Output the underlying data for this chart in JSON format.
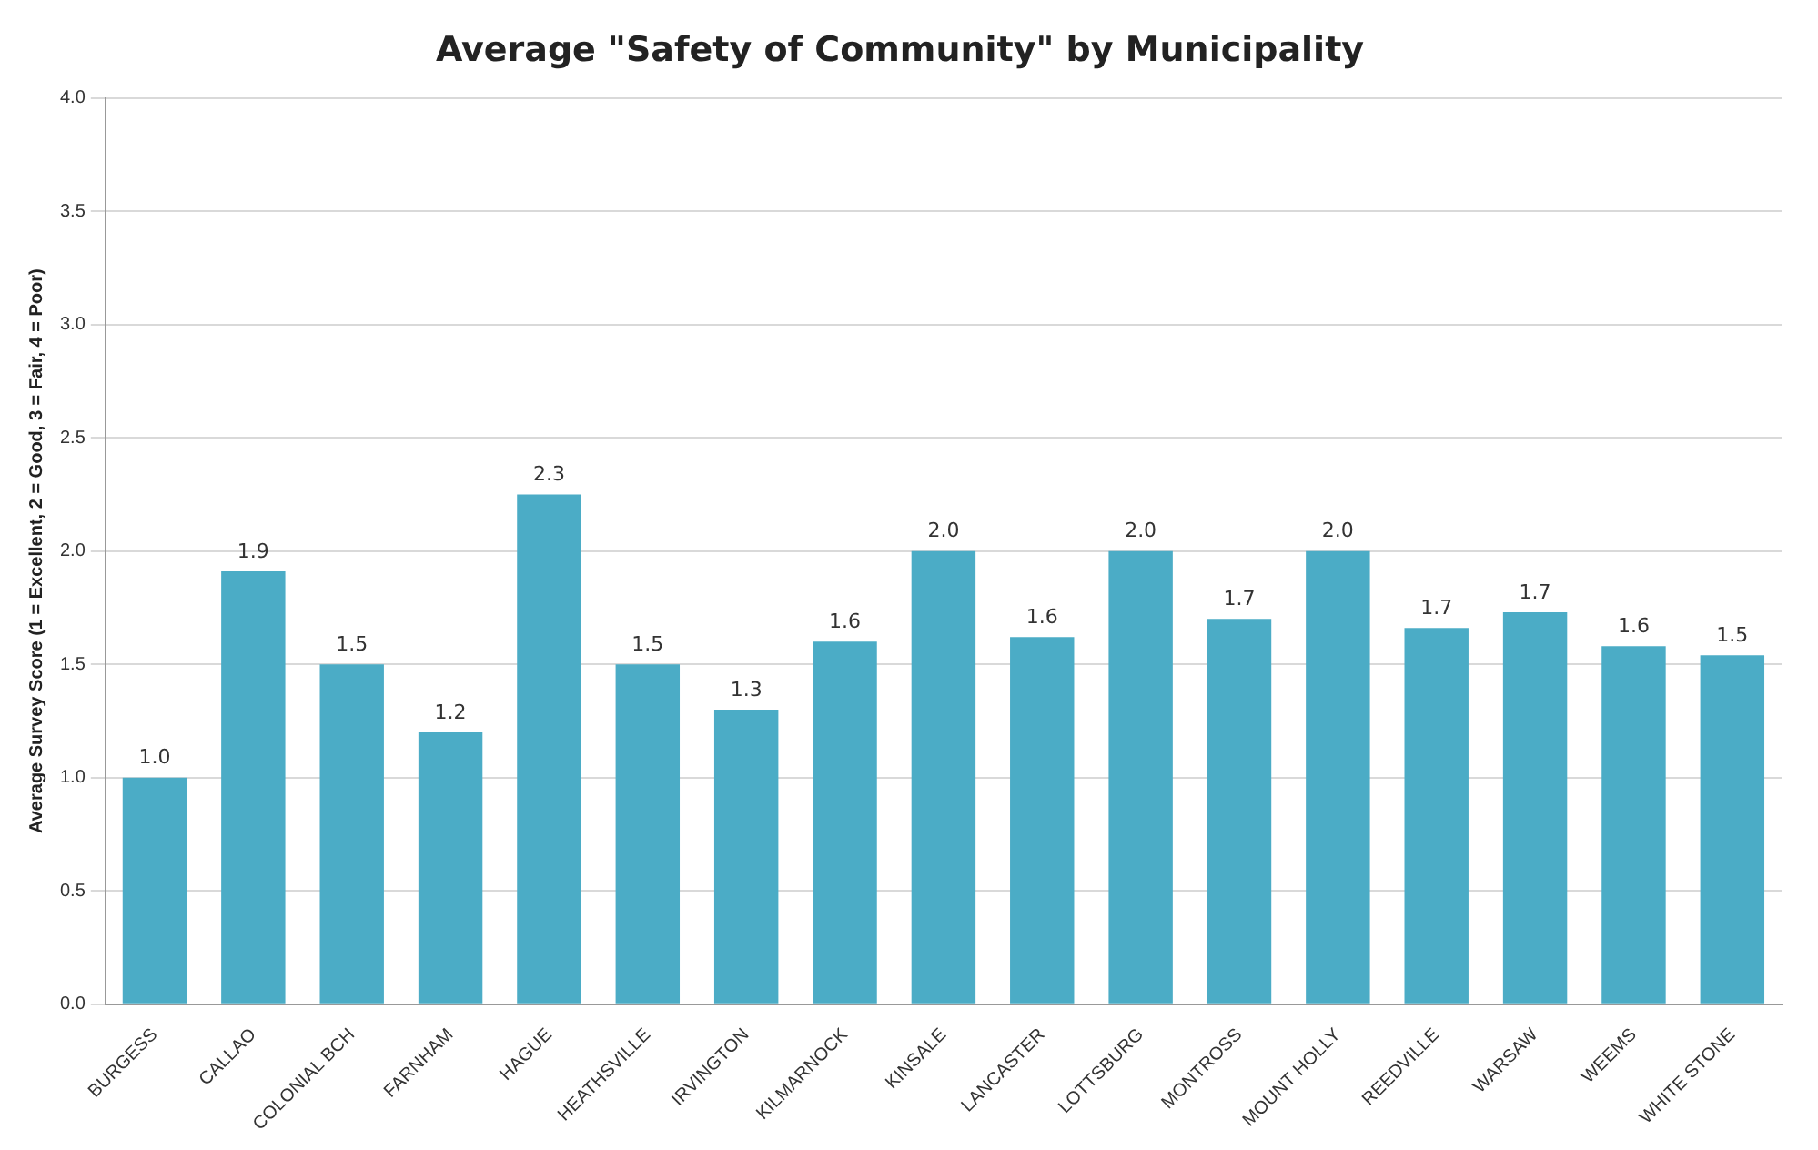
{
  "chart_data": {
    "type": "bar",
    "title": "Average \"Safety of Community\" by Municipality",
    "ylabel": "Average Survey Score (1 = Excellent, 2 = Good, 3 = Fair, 4 = Poor)",
    "categories": [
      "BURGESS",
      "CALLAO",
      "COLONIAL BCH",
      "FARNHAM",
      "HAGUE",
      "HEATHSVILLE",
      "IRVINGTON",
      "KILMARNOCK",
      "KINSALE",
      "LANCASTER",
      "LOTTSBURG",
      "MONTROSS",
      "MOUNT HOLLY",
      "REEDVILLE",
      "WARSAW",
      "WEEMS",
      "WHITE STONE"
    ],
    "values": [
      1.0,
      1.91,
      1.5,
      1.2,
      2.25,
      1.5,
      1.3,
      1.6,
      2.0,
      1.62,
      2.0,
      1.7,
      2.0,
      1.66,
      1.73,
      1.58,
      1.54
    ],
    "value_labels": [
      "1.0",
      "1.9",
      "1.5",
      "1.2",
      "2.3",
      "1.5",
      "1.3",
      "1.6",
      "2.0",
      "1.6",
      "2.0",
      "1.7",
      "2.0",
      "1.7",
      "1.7",
      "1.6",
      "1.5"
    ],
    "color": "#4bacc6",
    "ylim": [
      0,
      4
    ],
    "yticks": [
      {
        "value": 0,
        "label": "0.0"
      },
      {
        "value": 0.5,
        "label": "0.5"
      },
      {
        "value": 1,
        "label": "1.0"
      },
      {
        "value": 1.5,
        "label": "1.5"
      },
      {
        "value": 2,
        "label": "2.0"
      },
      {
        "value": 2.5,
        "label": "2.5"
      },
      {
        "value": 3,
        "label": "3.0"
      },
      {
        "value": 3.5,
        "label": "3.5"
      },
      {
        "value": 4,
        "label": "4.0"
      }
    ],
    "grid": "y",
    "legend": false
  }
}
